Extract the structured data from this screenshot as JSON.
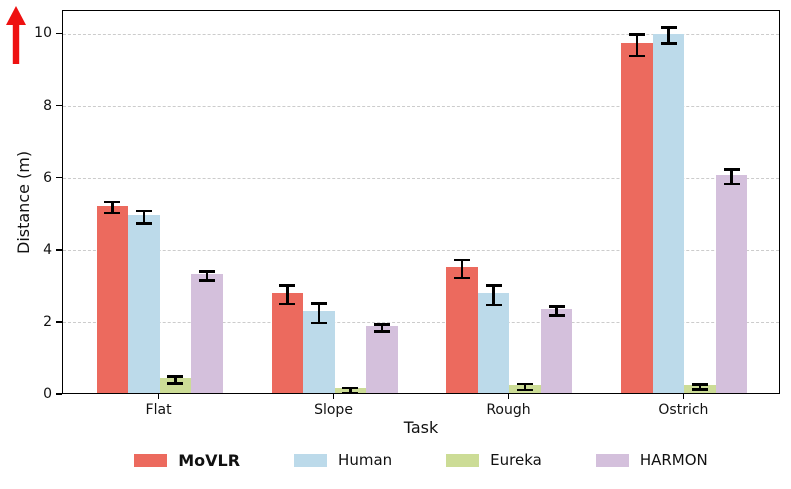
{
  "figure": {
    "arrow_color": "#EE1111"
  },
  "chart_data": {
    "type": "bar",
    "title": "",
    "xlabel": "Task",
    "ylabel": "Distance (m)",
    "categories": [
      "Flat",
      "Slope",
      "Rough",
      "Ostrich"
    ],
    "series": [
      {
        "name": "MoVLR",
        "color": "#EC6A5E",
        "bold": true,
        "values": [
          5.2,
          2.78,
          3.5,
          9.7
        ],
        "errors": [
          0.15,
          0.25,
          0.25,
          0.3
        ]
      },
      {
        "name": "Human",
        "color": "#BCDAEA",
        "bold": false,
        "values": [
          4.93,
          2.27,
          2.77,
          9.97
        ],
        "errors": [
          0.18,
          0.27,
          0.27,
          0.22
        ]
      },
      {
        "name": "Eureka",
        "color": "#CCDC96",
        "bold": false,
        "values": [
          0.42,
          0.13,
          0.22,
          0.22
        ],
        "errors": [
          0.1,
          0.07,
          0.08,
          0.07
        ]
      },
      {
        "name": "HARMON",
        "color": "#D4C0DC",
        "bold": false,
        "values": [
          3.3,
          1.86,
          2.33,
          6.05
        ],
        "errors": [
          0.12,
          0.1,
          0.13,
          0.2
        ]
      }
    ],
    "yticks": [
      0,
      2,
      4,
      6,
      8,
      10
    ],
    "ylim": [
      0,
      10.65
    ],
    "grid": "horizontal-dashed",
    "grid_color": "#cccccc",
    "errorbar_color": "#000000",
    "legend_position": "bottom-center"
  }
}
